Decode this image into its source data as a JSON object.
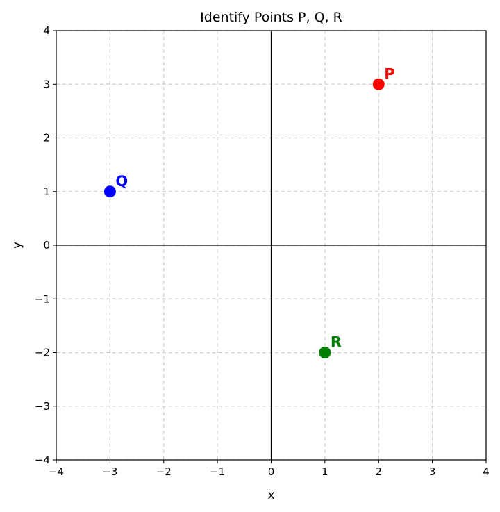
{
  "chart_data": {
    "type": "scatter",
    "title": "Identify Points P, Q, R",
    "xlabel": "x",
    "ylabel": "y",
    "xlim": [
      -4,
      4
    ],
    "ylim": [
      -4,
      4
    ],
    "xticks": [
      -4,
      -3,
      -2,
      -1,
      0,
      1,
      2,
      3,
      4
    ],
    "yticks": [
      -4,
      -3,
      -2,
      -1,
      0,
      1,
      2,
      3,
      4
    ],
    "xtick_labels": [
      "−4",
      "−3",
      "−2",
      "−1",
      "0",
      "1",
      "2",
      "3",
      "4"
    ],
    "ytick_labels": [
      "−4",
      "−3",
      "−2",
      "−1",
      "0",
      "1",
      "2",
      "3",
      "4"
    ],
    "grid": true,
    "points": [
      {
        "label": "P",
        "x": 2,
        "y": 3,
        "color": "#ff0000"
      },
      {
        "label": "Q",
        "x": -3,
        "y": 1,
        "color": "#0000ff"
      },
      {
        "label": "R",
        "x": 1,
        "y": -2,
        "color": "#008000"
      }
    ]
  }
}
